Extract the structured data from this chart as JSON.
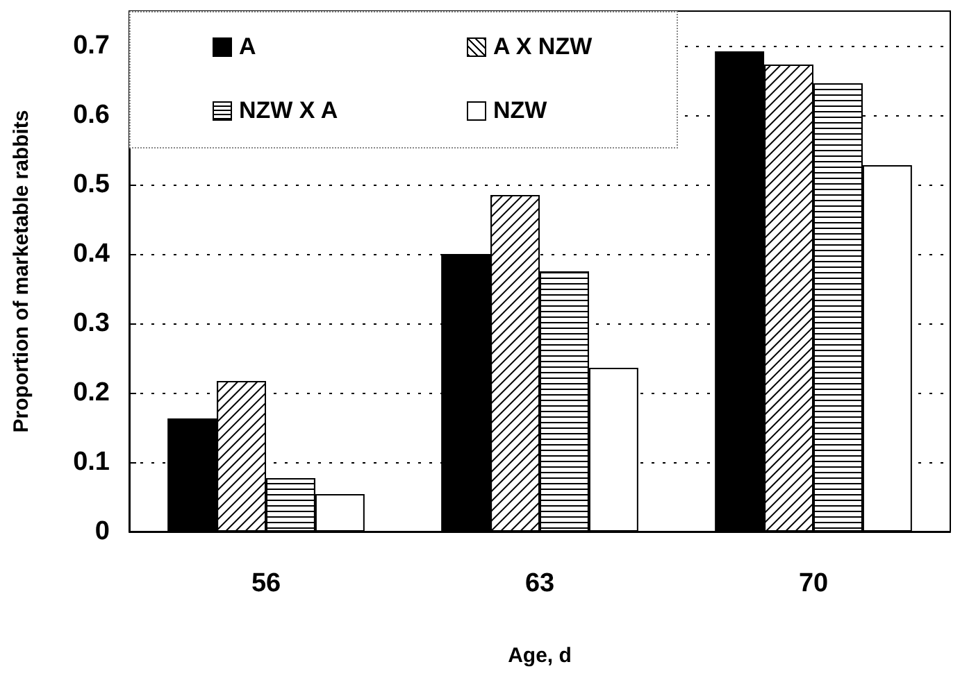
{
  "chart_data": {
    "type": "bar",
    "xlabel": "Age, d",
    "ylabel": "Proportion of marketable rabbits",
    "categories": [
      "56",
      "63",
      "70"
    ],
    "series": [
      {
        "name": "A",
        "color": "#000000",
        "values": [
          0.163,
          0.4,
          0.692
        ]
      },
      {
        "name": "A X NZW",
        "color": "#ffffff",
        "values": [
          0.217,
          0.485,
          0.673
        ]
      },
      {
        "name": "NZW X A",
        "color": "#ffffff",
        "values": [
          0.077,
          0.375,
          0.646
        ]
      },
      {
        "name": "NZW",
        "color": "#ffffff",
        "values": [
          0.054,
          0.236,
          0.528
        ]
      }
    ],
    "ylim": [
      0,
      0.75
    ],
    "yticks": [
      0,
      0.1,
      0.2,
      0.3,
      0.4,
      0.5,
      0.6,
      0.7
    ],
    "grid": "y",
    "legend": "top left"
  }
}
